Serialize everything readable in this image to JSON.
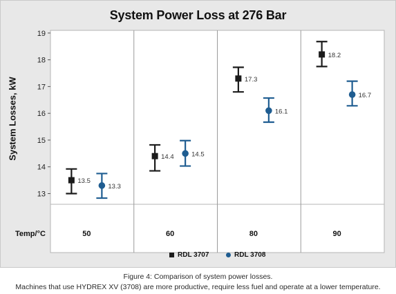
{
  "chart_data": {
    "type": "scatter",
    "title": "System Power Loss at 276 Bar",
    "ylabel": "System Losses, kW",
    "xlabel": "Temp/°C",
    "ylim": [
      12.6,
      19.1
    ],
    "yticks": [
      13,
      14,
      15,
      16,
      17,
      18,
      19
    ],
    "categories": [
      "50",
      "60",
      "80",
      "90"
    ],
    "grid": false,
    "legend": "bottom",
    "series": [
      {
        "name": "RDL 3707",
        "marker": "square",
        "color": "#1b1b1b",
        "values": [
          13.5,
          14.4,
          17.3,
          18.2
        ],
        "labels": [
          "13.5",
          "14.4",
          "17.3",
          "18.2"
        ],
        "error_low": [
          13.0,
          13.85,
          16.8,
          17.75
        ],
        "error_high": [
          13.92,
          14.82,
          17.72,
          18.68
        ]
      },
      {
        "name": "RDL 3708",
        "marker": "circle",
        "color": "#1f5d91",
        "values": [
          13.3,
          14.5,
          16.1,
          16.7
        ],
        "labels": [
          "13.3",
          "14.5",
          "16.1",
          "16.7"
        ],
        "error_low": [
          12.83,
          14.03,
          15.67,
          16.28
        ],
        "error_high": [
          13.75,
          14.98,
          16.57,
          17.2
        ]
      }
    ]
  },
  "caption": {
    "title": "Figure 4: Comparison of system power losses.",
    "body": "Machines that use HYDREX XV (3708) are more productive, require less fuel and operate at a lower temperature."
  }
}
